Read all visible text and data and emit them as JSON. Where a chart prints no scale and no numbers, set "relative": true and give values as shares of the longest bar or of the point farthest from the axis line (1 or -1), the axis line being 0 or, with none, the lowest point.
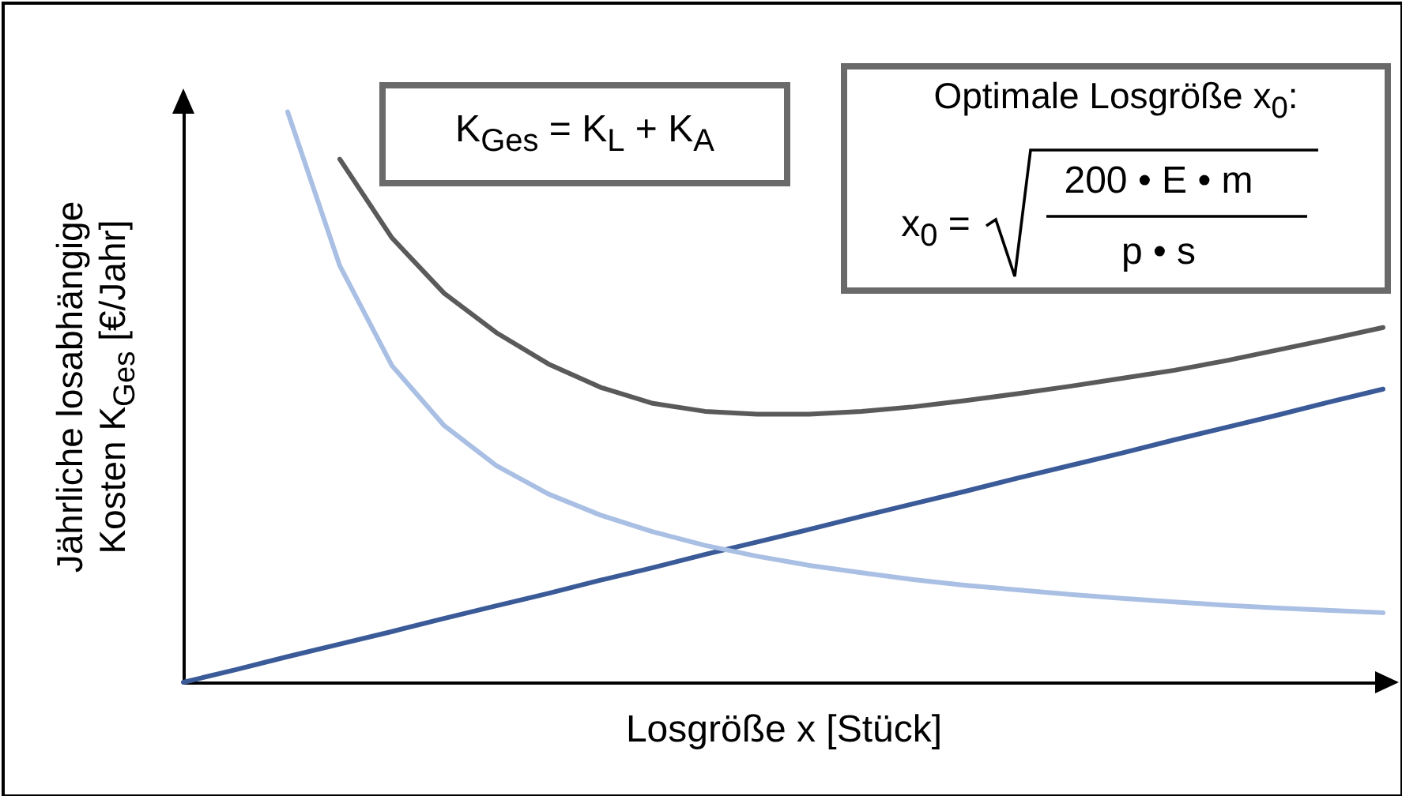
{
  "chart_data": {
    "type": "line",
    "relative": true,
    "xlabel": "Losgröße x [Stück]",
    "ylabel": "Jährliche losabhängige\nKosten K$_{Ges}$ [€/Jahr]",
    "annotations": [
      "K$_{Ges}$ = K$_{L}$ + K$_{A}$",
      "Optimale Losgröße x$_{0}$:",
      "x$_{0}$ =",
      "200 • E • m",
      "p • s"
    ],
    "categories": [
      null,
      null,
      null,
      null,
      null,
      null,
      null,
      null,
      null,
      null,
      null,
      null,
      null,
      null,
      null,
      null,
      null,
      null,
      null,
      null,
      null,
      null,
      null,
      null
    ],
    "series": [
      {
        "color": "#5a5a5a",
        "values": [
          null,
          null,
          null,
          0.917,
          0.779,
          0.682,
          0.613,
          0.558,
          0.517,
          0.489,
          0.475,
          0.47,
          0.47,
          0.475,
          0.483,
          0.494,
          0.506,
          0.519,
          0.533,
          0.547,
          0.564,
          0.583,
          0.602,
          0.622
        ]
      },
      {
        "color": "#3a5a98",
        "values": [
          0,
          0.022,
          0.045,
          0.067,
          0.089,
          0.112,
          0.134,
          0.156,
          0.179,
          0.201,
          0.224,
          0.246,
          0.268,
          0.291,
          0.313,
          0.335,
          0.358,
          0.38,
          0.402,
          0.425,
          0.447,
          0.469,
          0.492,
          0.514
        ]
      },
      {
        "color": "#a9bfe3",
        "values": [
          null,
          null,
          1.0,
          0.73,
          0.555,
          0.45,
          0.38,
          0.33,
          0.293,
          0.264,
          0.24,
          0.221,
          0.205,
          0.192,
          0.18,
          0.17,
          0.162,
          0.154,
          0.147,
          0.141,
          0.135,
          0.13,
          0.126,
          0.122
        ]
      }
    ]
  }
}
